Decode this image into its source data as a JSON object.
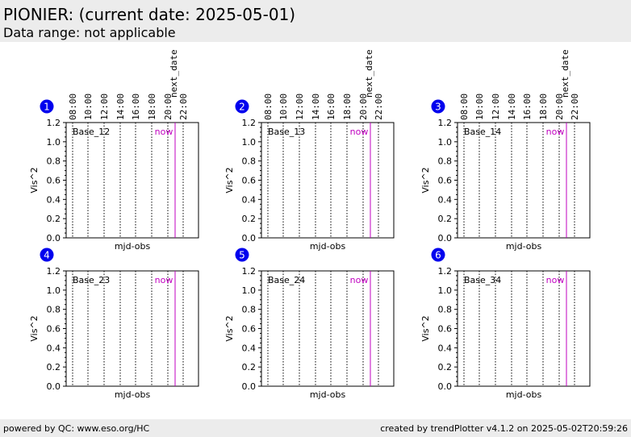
{
  "header": {
    "title": "PIONIER:  (current date: 2025-05-01)",
    "subtitle": "Data range: not applicable"
  },
  "footer": {
    "left": "powered by QC: www.eso.org/HC",
    "right": "created by trendPlotter v4.1.2 on 2025-05-02T20:59:26"
  },
  "colors": {
    "now_line": "#c000c0",
    "badge": "#0000ee",
    "header_bg": "#ececec"
  },
  "chart_data": [
    {
      "type": "line",
      "index": "1",
      "label": "Base_12",
      "xlabel": "mjd-obs",
      "ylabel": "Vis^2",
      "ylim": [
        0,
        1.2
      ],
      "yticks": [
        "0.0",
        "0.2",
        "0.4",
        "0.6",
        "0.8",
        "1.0",
        "1.2"
      ],
      "time_ticks": [
        "08:00",
        "10:00",
        "12:00",
        "14:00",
        "16:00",
        "18:00",
        "20:00",
        "22:00"
      ],
      "next_date_label": "next_date",
      "now_label": "now",
      "series": []
    },
    {
      "type": "line",
      "index": "2",
      "label": "Base_13",
      "xlabel": "mjd-obs",
      "ylabel": "Vis^2",
      "ylim": [
        0,
        1.2
      ],
      "yticks": [
        "0.0",
        "0.2",
        "0.4",
        "0.6",
        "0.8",
        "1.0",
        "1.2"
      ],
      "time_ticks": [
        "08:00",
        "10:00",
        "12:00",
        "14:00",
        "16:00",
        "18:00",
        "20:00",
        "22:00"
      ],
      "next_date_label": "next_date",
      "now_label": "now",
      "series": []
    },
    {
      "type": "line",
      "index": "3",
      "label": "Base_14",
      "xlabel": "mjd-obs",
      "ylabel": "Vis^2",
      "ylim": [
        0,
        1.2
      ],
      "yticks": [
        "0.0",
        "0.2",
        "0.4",
        "0.6",
        "0.8",
        "1.0",
        "1.2"
      ],
      "time_ticks": [
        "08:00",
        "10:00",
        "12:00",
        "14:00",
        "16:00",
        "18:00",
        "20:00",
        "22:00"
      ],
      "next_date_label": "next_date",
      "now_label": "now",
      "series": []
    },
    {
      "type": "line",
      "index": "4",
      "label": "Base_23",
      "xlabel": "mjd-obs",
      "ylabel": "Vis^2",
      "ylim": [
        0,
        1.2
      ],
      "yticks": [
        "0.0",
        "0.2",
        "0.4",
        "0.6",
        "0.8",
        "1.0",
        "1.2"
      ],
      "time_ticks": [],
      "next_date_label": "",
      "now_label": "now",
      "series": []
    },
    {
      "type": "line",
      "index": "5",
      "label": "Base_24",
      "xlabel": "mjd-obs",
      "ylabel": "Vis^2",
      "ylim": [
        0,
        1.2
      ],
      "yticks": [
        "0.0",
        "0.2",
        "0.4",
        "0.6",
        "0.8",
        "1.0",
        "1.2"
      ],
      "time_ticks": [],
      "next_date_label": "",
      "now_label": "now",
      "series": []
    },
    {
      "type": "line",
      "index": "6",
      "label": "Base_34",
      "xlabel": "mjd-obs",
      "ylabel": "Vis^2",
      "ylim": [
        0,
        1.2
      ],
      "yticks": [
        "0.0",
        "0.2",
        "0.4",
        "0.6",
        "0.8",
        "1.0",
        "1.2"
      ],
      "time_ticks": [],
      "next_date_label": "",
      "now_label": "now",
      "series": []
    }
  ]
}
